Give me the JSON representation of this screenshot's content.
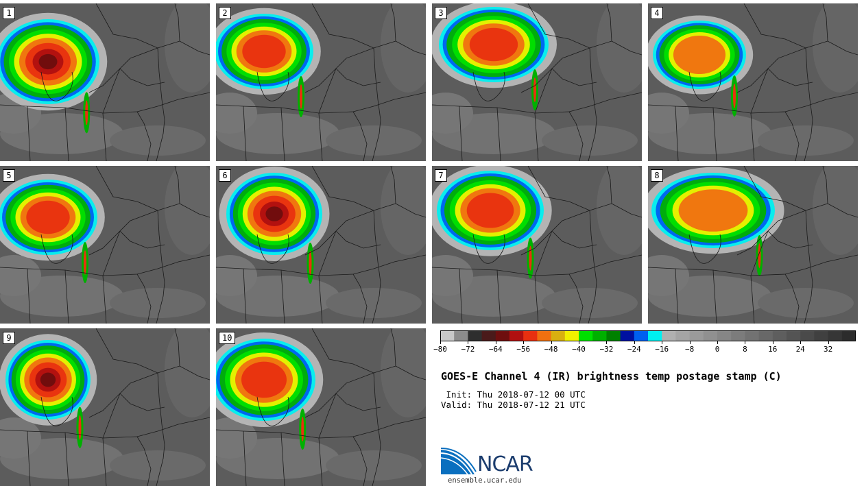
{
  "panels": [
    {
      "label": "1",
      "cx": 70,
      "cy": 85,
      "rx": 75,
      "ry": 62,
      "intensity": 1.0
    },
    {
      "label": "2",
      "cx": 70,
      "cy": 70,
      "rx": 72,
      "ry": 55,
      "intensity": 0.75
    },
    {
      "label": "3",
      "cx": 90,
      "cy": 60,
      "rx": 80,
      "ry": 55,
      "intensity": 0.8
    },
    {
      "label": "4",
      "cx": 75,
      "cy": 75,
      "rx": 68,
      "ry": 50,
      "intensity": 0.7
    },
    {
      "label": "5",
      "cx": 70,
      "cy": 75,
      "rx": 72,
      "ry": 55,
      "intensity": 0.8
    },
    {
      "label": "6",
      "cx": 85,
      "cy": 70,
      "rx": 70,
      "ry": 60,
      "intensity": 0.95
    },
    {
      "label": "7",
      "cx": 85,
      "cy": 65,
      "rx": 78,
      "ry": 58,
      "intensity": 0.75
    },
    {
      "label": "8",
      "cx": 95,
      "cy": 65,
      "rx": 90,
      "ry": 55,
      "intensity": 0.7
    },
    {
      "label": "9",
      "cx": 70,
      "cy": 75,
      "rx": 62,
      "ry": 58,
      "intensity": 1.0
    },
    {
      "label": "10",
      "cx": 70,
      "cy": 75,
      "rx": 75,
      "ry": 60,
      "intensity": 0.8
    }
  ],
  "colorbar": {
    "colors": [
      "#c8c8c8",
      "#8c8c8c",
      "#2e2e2e",
      "#4a1a1a",
      "#6e0e0e",
      "#b01010",
      "#e83010",
      "#f07010",
      "#d8b010",
      "#f0f000",
      "#00e000",
      "#00b000",
      "#008000",
      "#0010a0",
      "#0060f0",
      "#00f0f0",
      "#b0b0b0",
      "#a4a4a4",
      "#9a9a9a",
      "#909090",
      "#868686",
      "#7c7c7c",
      "#727272",
      "#686868",
      "#5e5e5e",
      "#545454",
      "#4a4a4a",
      "#404040",
      "#363636",
      "#2c2c2c"
    ],
    "min": -80,
    "step": 4,
    "tick_labels": [
      "−80",
      "−72",
      "−64",
      "−56",
      "−48",
      "−40",
      "−32",
      "−24",
      "−16",
      "−8",
      "0",
      "8",
      "16",
      "24",
      "32"
    ]
  },
  "title": "GOES-E Channel 4 (IR) brightness temp postage stamp (C)",
  "init_line": " Init: Thu 2018-07-12 00 UTC",
  "valid_line": "Valid: Thu 2018-07-12 21 UTC",
  "logo_text": "NCAR",
  "site": "ensemble.ucar.edu"
}
